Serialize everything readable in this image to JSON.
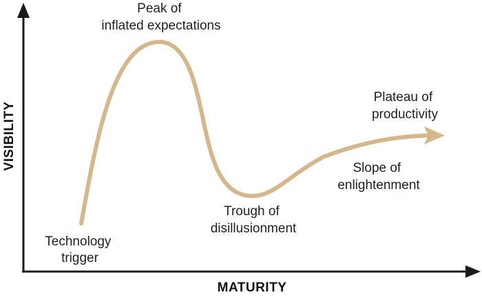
{
  "axes": {
    "y_label": "VISIBILITY",
    "x_label": "MATURITY"
  },
  "phases": [
    {
      "id": "trigger",
      "lines": [
        "Technology",
        "trigger"
      ]
    },
    {
      "id": "peak",
      "lines": [
        "Peak of",
        "inflated expectations"
      ]
    },
    {
      "id": "trough",
      "lines": [
        "Trough of",
        "disillusionment"
      ]
    },
    {
      "id": "slope",
      "lines": [
        "Slope of",
        "enlightenment"
      ]
    },
    {
      "id": "plateau",
      "lines": [
        "Plateau of",
        "productivity"
      ]
    }
  ],
  "colors": {
    "curve": "#d4b78a",
    "axes": "#1a1a1a",
    "text": "#1f1f1f"
  }
}
